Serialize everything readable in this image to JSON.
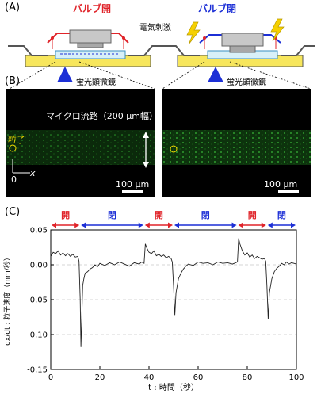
{
  "panels": {
    "a": "(A)",
    "b": "(B)",
    "c": "(C)"
  },
  "schematic": {
    "open_title": "バルブ開",
    "closed_title": "バルブ閉",
    "stimulus_label": "電気刺激",
    "microscope_left": "蛍光顕微鏡",
    "microscope_right": "蛍光顕微鏡",
    "colors": {
      "open": "#e0242a",
      "closed": "#1c2fd6",
      "base": "#f7e65c",
      "stimulus": "#f5d000"
    }
  },
  "images": {
    "channel_label": "マイクロ流路（200 μm幅）",
    "particle_label": "粒子",
    "origin_label": "0",
    "x_label": "x",
    "scale_left": "100 μm",
    "scale_right": "100 μm"
  },
  "chart_data": {
    "type": "line",
    "xlabel": "t : 時間（秒）",
    "ylabel": "dx/dt : 粒子速度（mm/秒）",
    "xlim": [
      0,
      100
    ],
    "ylim": [
      -0.15,
      0.05
    ],
    "xticks": [
      0,
      20,
      40,
      60,
      80,
      100
    ],
    "yticks": [
      0.05,
      0.0,
      -0.05,
      -0.1,
      -0.15
    ],
    "ytick_labels": [
      "0.05",
      "0.00",
      "-0.05",
      "-0.10",
      "-0.15"
    ],
    "reference_lines": [
      0.0,
      -0.05,
      -0.1
    ],
    "phases": [
      {
        "label": "開",
        "start": 0,
        "end": 12,
        "color": "#e0242a"
      },
      {
        "label": "閉",
        "start": 12,
        "end": 38,
        "color": "#1c2fd6"
      },
      {
        "label": "開",
        "start": 38,
        "end": 50,
        "color": "#e0242a"
      },
      {
        "label": "閉",
        "start": 50,
        "end": 76,
        "color": "#1c2fd6"
      },
      {
        "label": "開",
        "start": 76,
        "end": 88,
        "color": "#e0242a"
      },
      {
        "label": "閉",
        "start": 88,
        "end": 100,
        "color": "#1c2fd6"
      }
    ],
    "series": [
      {
        "t": [
          0,
          1,
          2,
          3,
          4,
          5,
          6,
          7,
          8,
          9,
          10,
          11,
          11.5,
          12,
          12.3,
          12.6,
          13,
          13.5,
          14,
          15,
          16,
          17,
          18,
          19,
          20,
          22,
          24,
          26,
          28,
          30,
          32,
          34,
          36,
          37,
          38,
          38.5,
          39,
          40,
          41,
          42,
          43,
          44,
          45,
          46,
          47,
          48,
          49,
          49.5,
          50,
          50.5,
          51,
          52,
          53,
          54,
          55,
          56,
          58,
          60,
          62,
          64,
          66,
          68,
          70,
          72,
          74,
          76,
          76.5,
          77,
          78,
          79,
          80,
          81,
          82,
          83,
          84,
          85,
          86,
          87,
          87.5,
          88,
          88.5,
          89,
          90,
          91,
          92,
          93,
          94,
          95,
          96,
          97,
          98,
          99,
          100
        ],
        "v": [
          0.012,
          0.018,
          0.016,
          0.02,
          0.014,
          0.017,
          0.013,
          0.016,
          0.012,
          0.015,
          0.011,
          0.012,
          0.005,
          -0.05,
          -0.118,
          -0.08,
          -0.03,
          -0.02,
          -0.012,
          -0.01,
          -0.006,
          -0.004,
          0.0,
          -0.003,
          0.002,
          -0.001,
          0.003,
          0.0,
          0.004,
          0.001,
          -0.002,
          0.003,
          0.001,
          0.004,
          0.002,
          0.03,
          0.025,
          0.018,
          0.016,
          0.02,
          0.013,
          0.015,
          0.012,
          0.014,
          0.01,
          0.012,
          0.009,
          0.004,
          -0.03,
          -0.072,
          -0.04,
          -0.02,
          -0.012,
          -0.006,
          -0.002,
          0.001,
          -0.001,
          0.004,
          0.002,
          0.003,
          0.0,
          0.004,
          0.002,
          0.003,
          0.001,
          0.004,
          0.038,
          0.03,
          0.02,
          0.014,
          0.017,
          0.011,
          0.014,
          0.009,
          0.012,
          0.01,
          0.008,
          0.009,
          0.005,
          -0.03,
          -0.078,
          -0.04,
          -0.02,
          -0.01,
          -0.005,
          -0.002,
          0.002,
          0.0,
          0.004,
          0.001,
          0.003,
          0.002,
          0.001
        ]
      }
    ]
  }
}
